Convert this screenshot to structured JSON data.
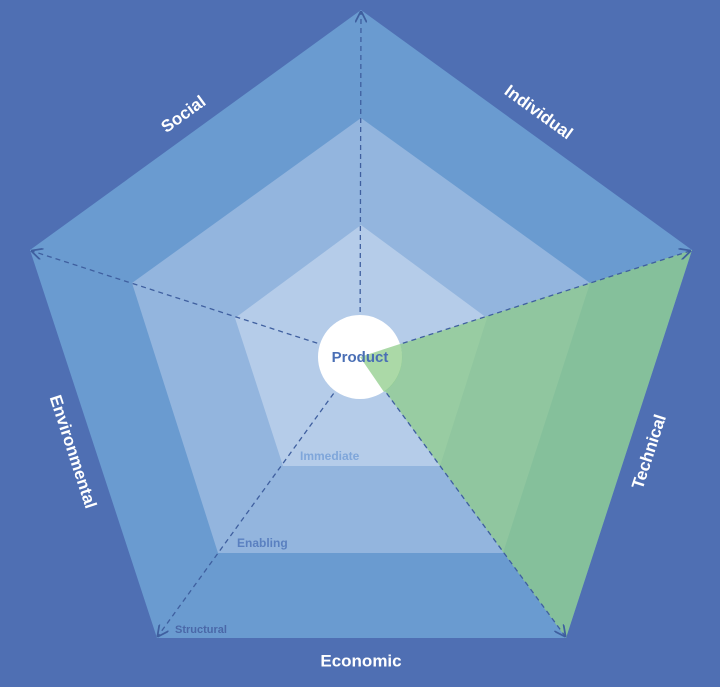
{
  "center": "Product",
  "dimensions": [
    "Social",
    "Individual",
    "Technical",
    "Economic",
    "Environmental"
  ],
  "rings": [
    "Immediate",
    "Enabling",
    "Structural"
  ]
}
